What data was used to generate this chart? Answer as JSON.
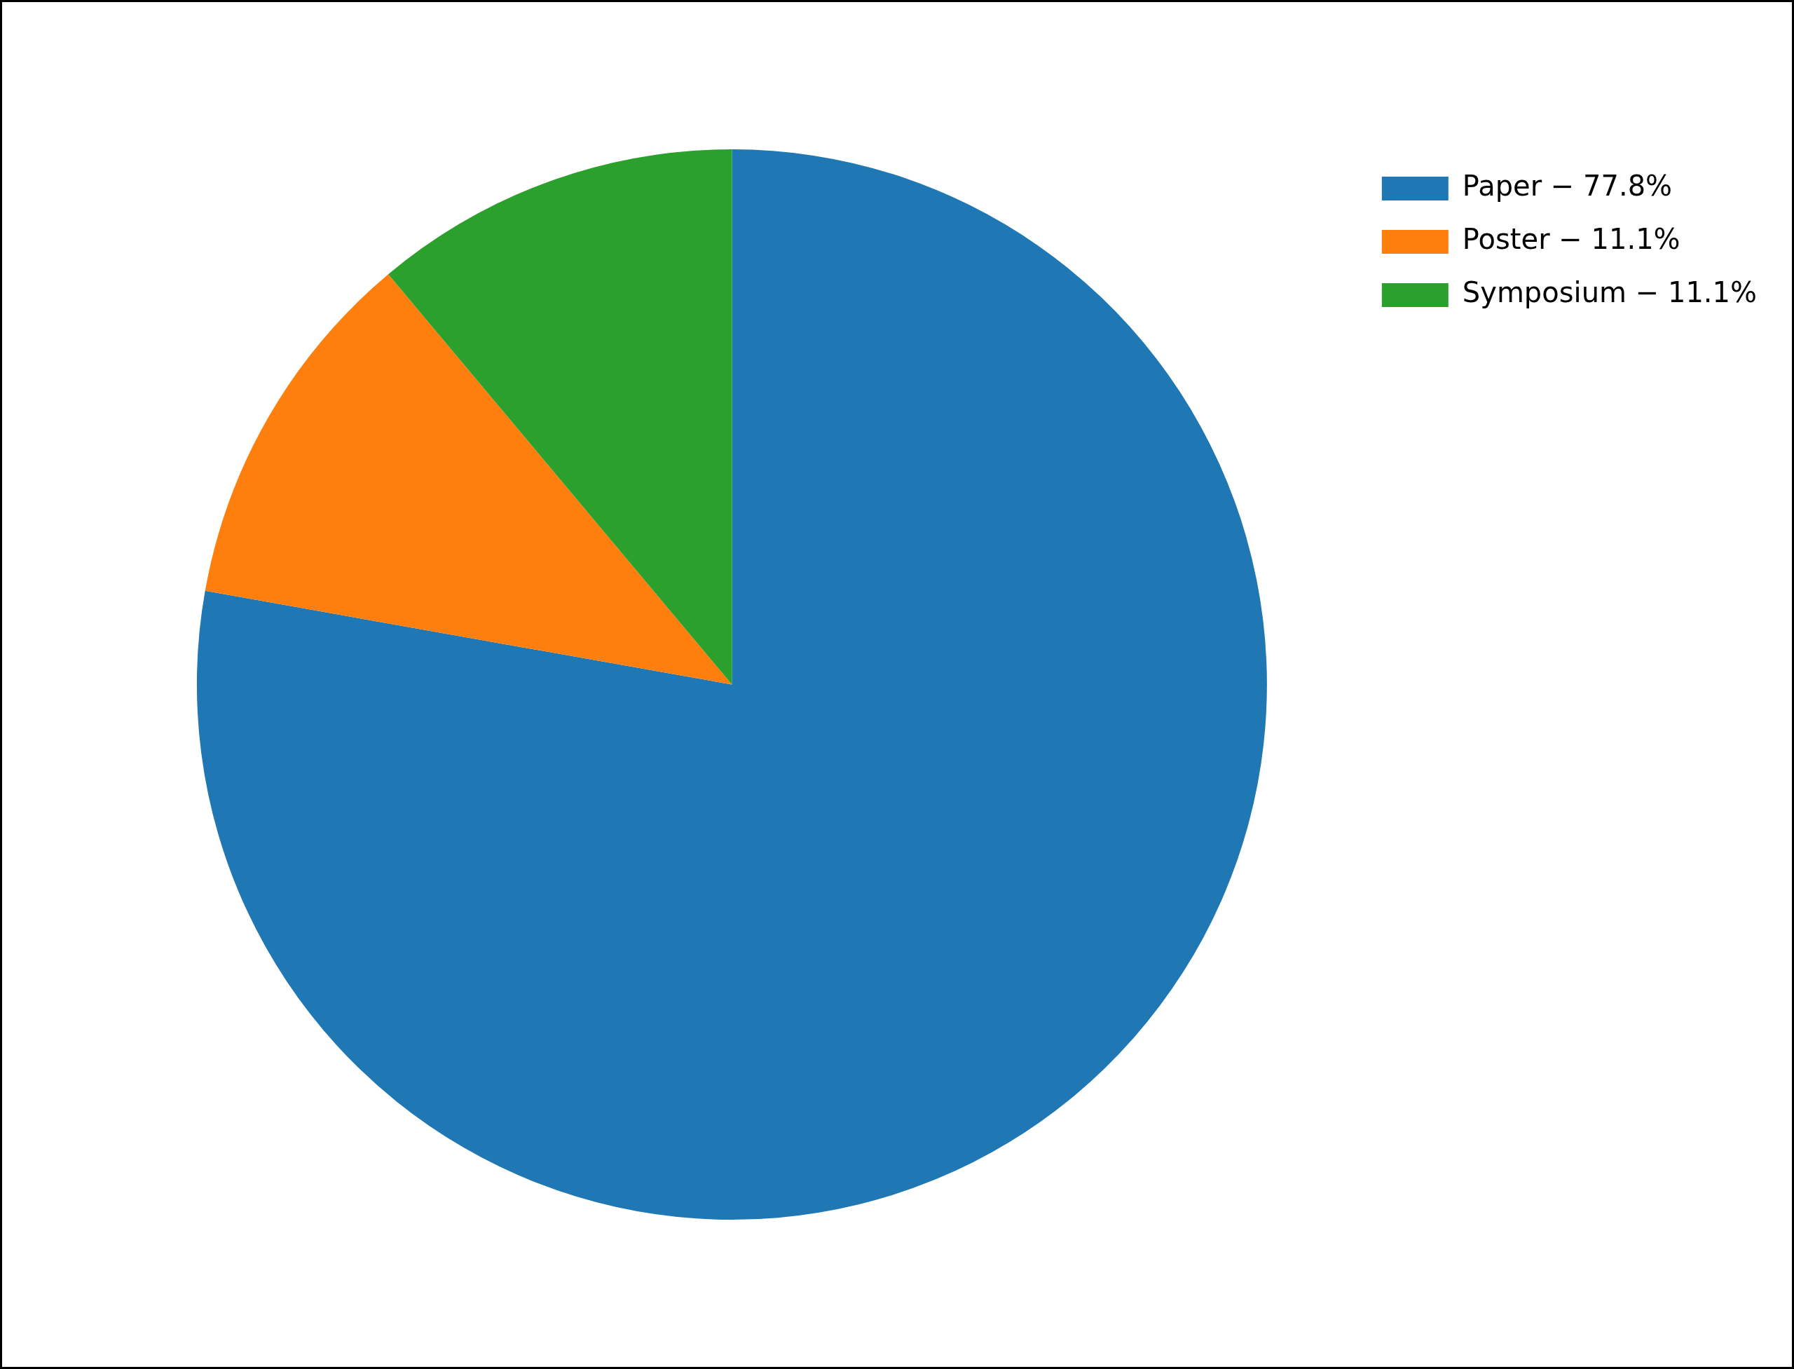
{
  "chart_data": {
    "type": "pie",
    "categories": [
      "Paper − 77.8%",
      "Poster − 11.1%",
      "Symposium − 11.1%"
    ],
    "values": [
      77.8,
      11.1,
      11.1
    ],
    "colors": [
      "#1f77b4",
      "#ff7f0e",
      "#2ca02c"
    ],
    "legend": "top right"
  }
}
